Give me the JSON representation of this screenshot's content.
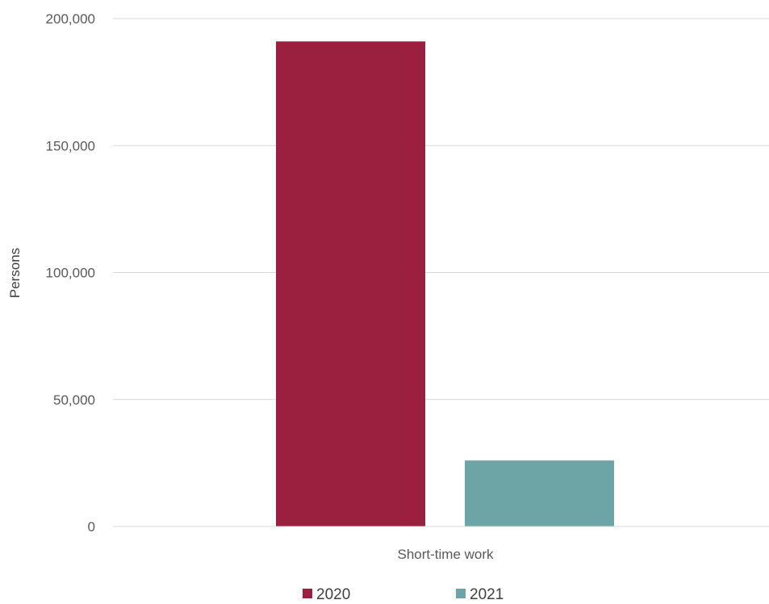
{
  "chart_data": {
    "type": "bar",
    "categories": [
      "Short-time work"
    ],
    "series": [
      {
        "name": "2020",
        "values": [
          191000
        ],
        "color": "#9B1F3F"
      },
      {
        "name": "2021",
        "values": [
          26000
        ],
        "color": "#6DA5A6"
      }
    ],
    "xlabel": "",
    "ylabel": "Persons",
    "ylim": [
      0,
      200000
    ],
    "yticks": [
      0,
      50000,
      100000,
      150000,
      200000
    ],
    "ytick_labels": [
      "0",
      "50,000",
      "100,000",
      "150,000",
      "200,000"
    ],
    "grid": true,
    "legend_position": "bottom"
  }
}
